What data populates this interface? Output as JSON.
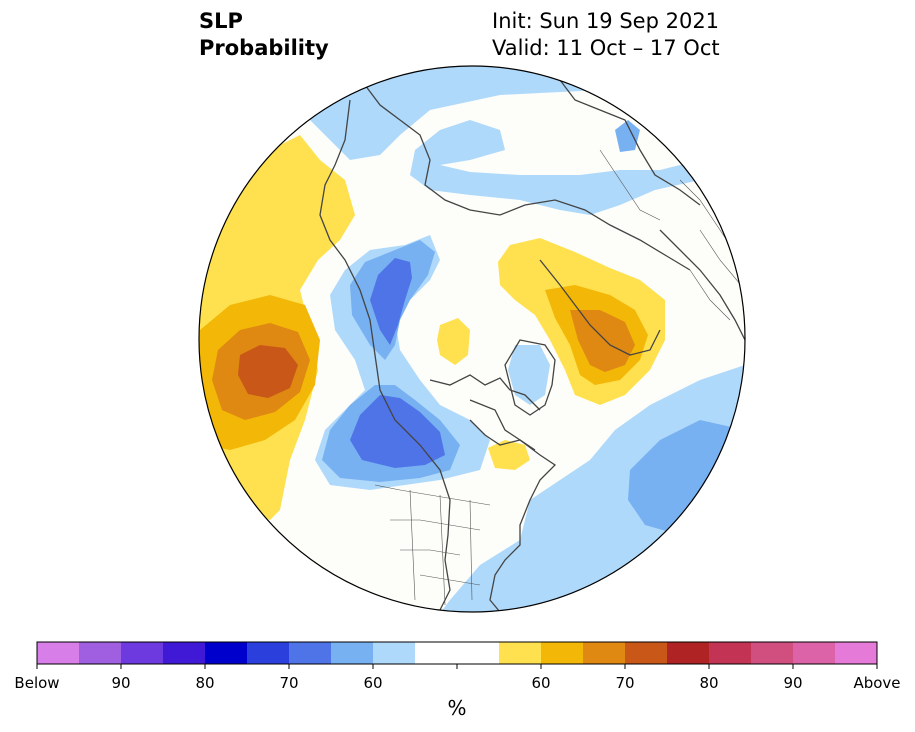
{
  "header": {
    "title_line1": "SLP",
    "title_line2": "Probability",
    "init_label": "Init: Sun 19 Sep 2021",
    "valid_label": "Valid: 11 Oct – 17 Oct"
  },
  "legend": {
    "unit": "%",
    "colors": [
      "#d77ee9",
      "#a05ee0",
      "#6c3ade",
      "#4019d6",
      "#0000cd",
      "#2a3fdc",
      "#4f74e7",
      "#78b1f1",
      "#aed9fb",
      "#ffffff",
      "#ffffff",
      "#ffe14f",
      "#f3b707",
      "#df8812",
      "#c95718",
      "#b02325",
      "#c33353",
      "#d14f7f",
      "#dd63a9",
      "#e67ad9"
    ],
    "tick_labels": [
      "Below",
      "90",
      "80",
      "70",
      "60",
      "60",
      "70",
      "80",
      "90",
      "Above"
    ]
  },
  "colors": {
    "land_outline": "#444444",
    "map_border": "#000000",
    "background": "#fdfdf9"
  }
}
